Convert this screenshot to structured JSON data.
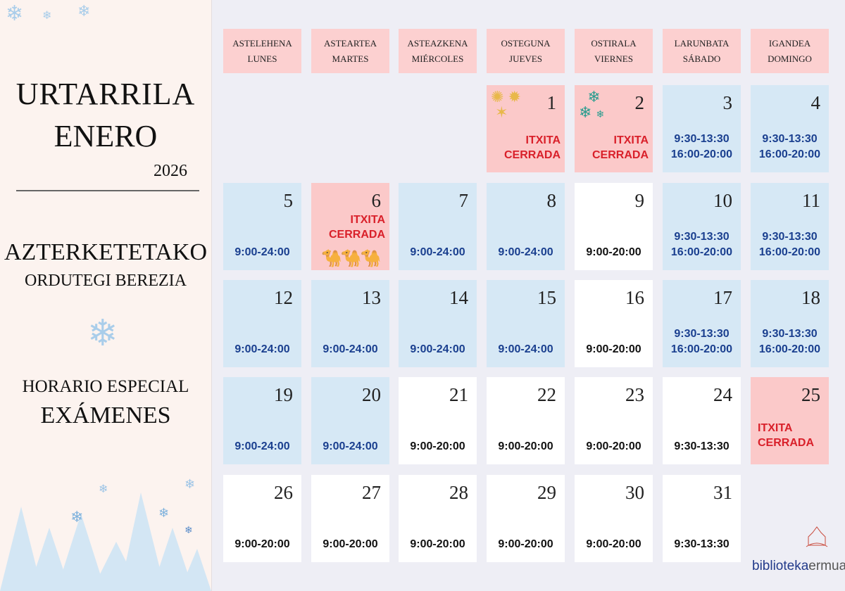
{
  "sidebar": {
    "title1": "URTARRILA",
    "title2": "ENERO",
    "year": "2026",
    "subtitle1": "AZTERKETETAKO",
    "subtitle2": "ORDUTEGI BEREZIA",
    "subtitle3": "HORARIO ESPECIAL",
    "subtitle4": "EXÁMENES"
  },
  "headers": [
    {
      "eu": "ASTELEHENA",
      "es": "LUNES"
    },
    {
      "eu": "ASTEARTEA",
      "es": "MARTES"
    },
    {
      "eu": "ASTEAZKENA",
      "es": "MIÉRCOLES"
    },
    {
      "eu": "OSTEGUNA",
      "es": "JUEVES"
    },
    {
      "eu": "OSTIRALA",
      "es": "VIERNES"
    },
    {
      "eu": "LARUNBATA",
      "es": "SÁBADO"
    },
    {
      "eu": "IGANDEA",
      "es": "DOMINGO"
    }
  ],
  "closed": {
    "eu": "ITXITA",
    "es": "CERRADA"
  },
  "days": [
    {
      "d": "1",
      "type": "pink",
      "lines": [],
      "closed": true,
      "icon": "fireworks"
    },
    {
      "d": "2",
      "type": "pink",
      "lines": [],
      "closed": true,
      "icon": "snowflakes"
    },
    {
      "d": "3",
      "type": "blue",
      "lines": [
        "9:30-13:30",
        "16:00-20:00"
      ]
    },
    {
      "d": "4",
      "type": "blue",
      "lines": [
        "9:30-13:30",
        "16:00-20:00"
      ]
    },
    {
      "d": "5",
      "type": "blue",
      "lines": [
        "9:00-24:00"
      ]
    },
    {
      "d": "6",
      "type": "pink",
      "lines": [],
      "closed": true,
      "icon": "three-kings"
    },
    {
      "d": "7",
      "type": "blue",
      "lines": [
        "9:00-24:00"
      ]
    },
    {
      "d": "8",
      "type": "blue",
      "lines": [
        "9:00-24:00"
      ]
    },
    {
      "d": "9",
      "type": "white",
      "lines": [
        "9:00-20:00"
      ]
    },
    {
      "d": "10",
      "type": "blue",
      "lines": [
        "9:30-13:30",
        "16:00-20:00"
      ]
    },
    {
      "d": "11",
      "type": "blue",
      "lines": [
        "9:30-13:30",
        "16:00-20:00"
      ]
    },
    {
      "d": "12",
      "type": "blue",
      "lines": [
        "9:00-24:00"
      ]
    },
    {
      "d": "13",
      "type": "blue",
      "lines": [
        "9:00-24:00"
      ]
    },
    {
      "d": "14",
      "type": "blue",
      "lines": [
        "9:00-24:00"
      ]
    },
    {
      "d": "15",
      "type": "blue",
      "lines": [
        "9:00-24:00"
      ]
    },
    {
      "d": "16",
      "type": "white",
      "lines": [
        "9:00-20:00"
      ]
    },
    {
      "d": "17",
      "type": "blue",
      "lines": [
        "9:30-13:30",
        "16:00-20:00"
      ]
    },
    {
      "d": "18",
      "type": "blue",
      "lines": [
        "9:30-13:30",
        "16:00-20:00"
      ]
    },
    {
      "d": "19",
      "type": "blue",
      "lines": [
        "9:00-24:00"
      ]
    },
    {
      "d": "20",
      "type": "blue",
      "lines": [
        "9:00-24:00"
      ]
    },
    {
      "d": "21",
      "type": "white",
      "lines": [
        "9:00-20:00"
      ]
    },
    {
      "d": "22",
      "type": "white",
      "lines": [
        "9:00-20:00"
      ]
    },
    {
      "d": "23",
      "type": "white",
      "lines": [
        "9:00-20:00"
      ]
    },
    {
      "d": "24",
      "type": "white",
      "lines": [
        "9:30-13:30"
      ]
    },
    {
      "d": "25",
      "type": "pink",
      "lines": [],
      "closed": true
    },
    {
      "d": "26",
      "type": "white",
      "lines": [
        "9:00-20:00"
      ]
    },
    {
      "d": "27",
      "type": "white",
      "lines": [
        "9:00-20:00"
      ]
    },
    {
      "d": "28",
      "type": "white",
      "lines": [
        "9:00-20:00"
      ]
    },
    {
      "d": "29",
      "type": "white",
      "lines": [
        "9:00-20:00"
      ]
    },
    {
      "d": "30",
      "type": "white",
      "lines": [
        "9:00-20:00"
      ]
    },
    {
      "d": "31",
      "type": "white",
      "lines": [
        "9:30-13:30"
      ]
    }
  ],
  "logo": {
    "text1": "biblioteka",
    "text2": "ermua",
    "seal": "Ermua"
  },
  "colors": {
    "blue": "#d6e8f5",
    "pink": "#fbc9c9",
    "closed_text": "#d9202a",
    "hours_blue": "#1a3f8f"
  }
}
